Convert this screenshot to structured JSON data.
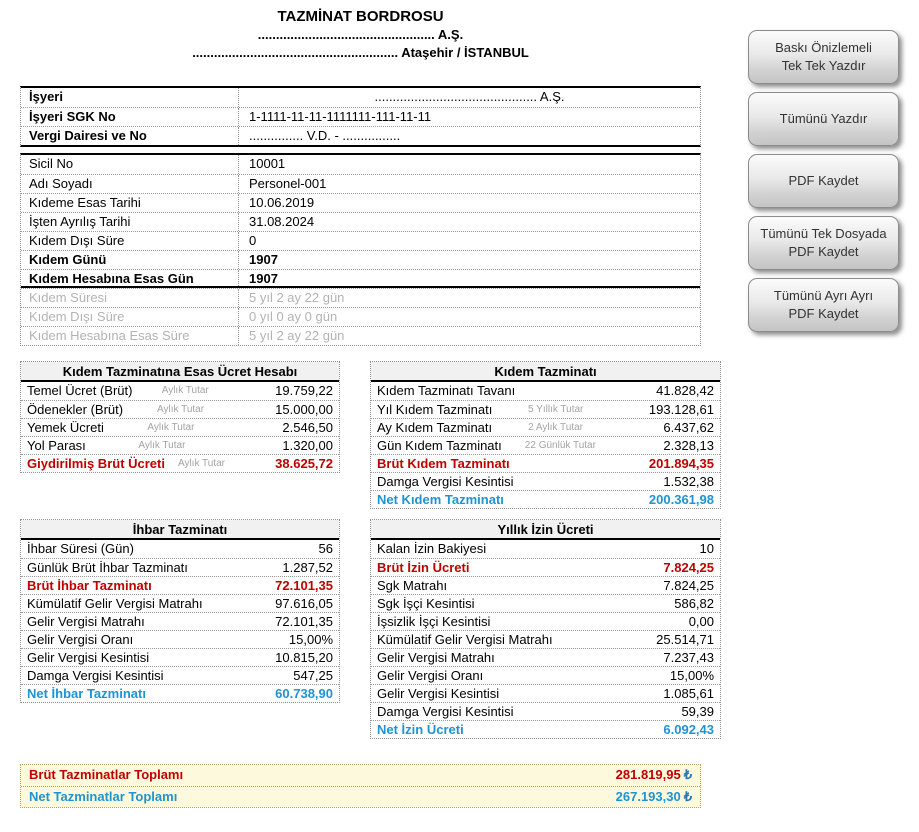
{
  "header": {
    "title": "TAZMİNAT BORDROSU",
    "company": "................................................. A.Ş.",
    "address": "......................................................... Ataşehir / İSTANBUL"
  },
  "workplace": {
    "rows": [
      {
        "label": "İşyeri",
        "value": "............................................. A.Ş."
      },
      {
        "label": "İşyeri SGK No",
        "value": "1-1111-11-11-1111111-111-11-11"
      },
      {
        "label": "Vergi Dairesi ve No",
        "value": "............... V.D.  -  ................"
      }
    ]
  },
  "personnel": {
    "rows": [
      {
        "label": "Sicil No",
        "value": "10001"
      },
      {
        "label": "Adı Soyadı",
        "value": "Personel-001"
      },
      {
        "label": "Kıdeme Esas Tarihi",
        "value": "10.06.2019"
      },
      {
        "label": "İşten Ayrılış Tarihi",
        "value": "31.08.2024"
      },
      {
        "label": "Kıdem Dışı Süre",
        "value": "0"
      },
      {
        "label": "Kıdem Günü",
        "value": "1907"
      },
      {
        "label": "Kıdem Hesabına Esas Gün",
        "value": "1907"
      }
    ],
    "muted_rows": [
      {
        "label": "Kıdem Süresi",
        "value": "5 yıl 2 ay 22 gün"
      },
      {
        "label": "Kıdem Dışı Süre",
        "value": "0 yıl 0 ay 0 gün"
      },
      {
        "label": "Kıdem Hesabına Esas Süre",
        "value": "5 yıl 2 ay 22 gün"
      }
    ]
  },
  "ucret_table": {
    "title": "Kıdem Tazminatına Esas Ücret Hesabı",
    "rows": [
      {
        "label": "Temel Ücret (Brüt)",
        "sub": "Aylık Tutar",
        "value": "19.759,22"
      },
      {
        "label": "Ödenekler (Brüt)",
        "sub": "Aylık Tutar",
        "value": "15.000,00"
      },
      {
        "label": "Yemek Ücreti",
        "sub": "Aylık Tutar",
        "value": "2.546,50"
      },
      {
        "label": "Yol Parası",
        "sub": "Aylık Tutar",
        "value": "1.320,00"
      },
      {
        "label": "Giydirilmiş Brüt Ücreti",
        "sub": "Aylık Tutar",
        "value": "38.625,72"
      }
    ]
  },
  "kidem_table": {
    "title": "Kıdem Tazminatı",
    "rows": [
      {
        "label": "Kıdem Tazminatı Tavanı",
        "sub": "",
        "value": "41.828,42"
      },
      {
        "label": "Yıl Kıdem Tazminatı",
        "sub": "5 Yıllık Tutar",
        "value": "193.128,61"
      },
      {
        "label": "Ay Kıdem Tazminatı",
        "sub": "2 Aylık Tutar",
        "value": "6.437,62"
      },
      {
        "label": "Gün Kıdem Tazminatı",
        "sub": "22 Günlük Tutar",
        "value": "2.328,13"
      },
      {
        "label": "Brüt Kıdem Tazminatı",
        "sub": "",
        "value": "201.894,35"
      },
      {
        "label": "Damga Vergisi Kesintisi",
        "sub": "",
        "value": "1.532,38"
      },
      {
        "label": "Net Kıdem Tazminatı",
        "sub": "",
        "value": "200.361,98"
      }
    ]
  },
  "ihbar_table": {
    "title": "İhbar Tazminatı",
    "rows": [
      {
        "label": "İhbar Süresi (Gün)",
        "sub": "",
        "value": "56"
      },
      {
        "label": "Günlük Brüt İhbar Tazminatı",
        "sub": "",
        "value": "1.287,52"
      },
      {
        "label": "Brüt İhbar Tazminatı",
        "sub": "",
        "value": "72.101,35"
      },
      {
        "label": "Kümülatif Gelir Vergisi Matrahı",
        "sub": "",
        "value": "97.616,05"
      },
      {
        "label": "Gelir Vergisi Matrahı",
        "sub": "",
        "value": "72.101,35"
      },
      {
        "label": "Gelir Vergisi Oranı",
        "sub": "",
        "value": "15,00%"
      },
      {
        "label": "Gelir Vergisi Kesintisi",
        "sub": "",
        "value": "10.815,20"
      },
      {
        "label": "Damga Vergisi Kesintisi",
        "sub": "",
        "value": "547,25"
      },
      {
        "label": "Net İhbar Tazminatı",
        "sub": "",
        "value": "60.738,90"
      }
    ]
  },
  "izin_table": {
    "title": "Yıllık İzin Ücreti",
    "rows": [
      {
        "label": "Kalan İzin Bakiyesi",
        "sub": "",
        "value": "10"
      },
      {
        "label": "Brüt İzin Ücreti",
        "sub": "",
        "value": "7.824,25"
      },
      {
        "label": "Sgk Matrahı",
        "sub": "",
        "value": "7.824,25"
      },
      {
        "label": "Sgk İşçi Kesintisi",
        "sub": "",
        "value": "586,82"
      },
      {
        "label": "İşsizlik İşçi Kesintisi",
        "sub": "",
        "value": "0,00"
      },
      {
        "label": "Kümülatif Gelir Vergisi Matrahı",
        "sub": "",
        "value": "25.514,71"
      },
      {
        "label": "Gelir Vergisi Matrahı",
        "sub": "",
        "value": "7.237,43"
      },
      {
        "label": "Gelir Vergisi Oranı",
        "sub": "",
        "value": "15,00%"
      },
      {
        "label": "Gelir Vergisi Kesintisi",
        "sub": "",
        "value": "1.085,61"
      },
      {
        "label": "Damga Vergisi Kesintisi",
        "sub": "",
        "value": "59,39"
      },
      {
        "label": "Net İzin Ücreti",
        "sub": "",
        "value": "6.092,43"
      }
    ]
  },
  "totals": {
    "rows": [
      {
        "label": "Brüt Tazminatlar Toplamı",
        "value": "281.819,95",
        "currency": "₺"
      },
      {
        "label": "Net Tazminatlar Toplamı",
        "value": "267.193,30",
        "currency": "₺"
      }
    ]
  },
  "buttons": [
    {
      "lines": [
        "Baskı Önizlemeli",
        "Tek Tek Yazdır"
      ]
    },
    {
      "lines": [
        "Tümünü Yazdır"
      ]
    },
    {
      "lines": [
        "PDF Kaydet"
      ]
    },
    {
      "lines": [
        "Tümünü Tek Dosyada",
        "PDF Kaydet"
      ]
    },
    {
      "lines": [
        "Tümünü Ayrı Ayrı",
        "PDF Kaydet"
      ]
    }
  ],
  "colors": {
    "accent_red": "#C00000",
    "accent_blue": "#1E94D2",
    "muted_gray": "#B3B3B3",
    "totals_background": "#FCF9DC"
  }
}
